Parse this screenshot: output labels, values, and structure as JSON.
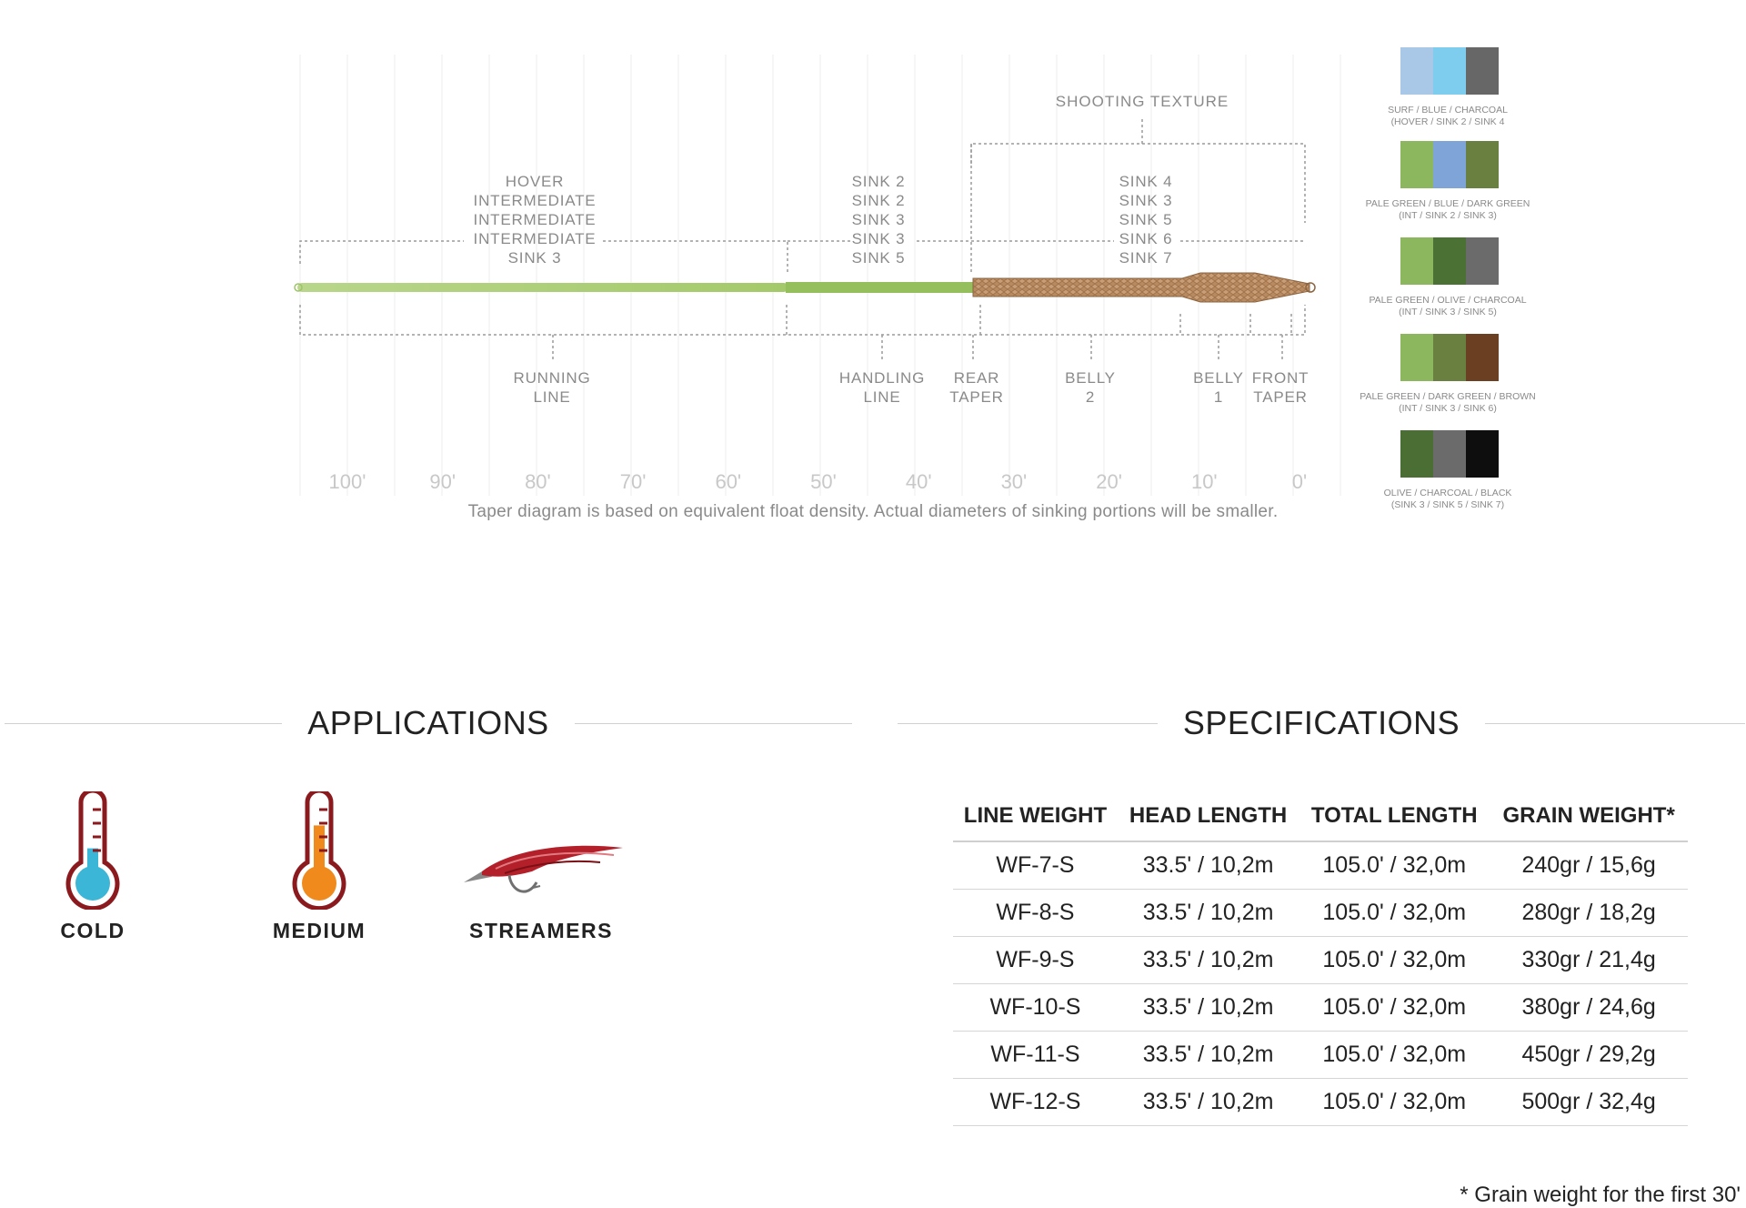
{
  "diagram": {
    "shooting_texture_label": "SHOOTING TEXTURE",
    "density_groups": [
      {
        "lines": [
          "HOVER",
          "INTERMEDIATE",
          "INTERMEDIATE",
          "INTERMEDIATE",
          "SINK 3"
        ]
      },
      {
        "lines": [
          "SINK 2",
          "SINK 2",
          "SINK 3",
          "SINK 3",
          "SINK 5"
        ]
      },
      {
        "lines": [
          "SINK 4",
          "SINK 3",
          "SINK 5",
          "SINK 6",
          "SINK 7"
        ]
      }
    ],
    "sections": [
      {
        "lines": [
          "RUNNING",
          "LINE"
        ]
      },
      {
        "lines": [
          "HANDLING",
          "LINE"
        ]
      },
      {
        "lines": [
          "REAR",
          "TAPER"
        ]
      },
      {
        "lines": [
          "BELLY",
          "2"
        ]
      },
      {
        "lines": [
          "BELLY",
          "1"
        ]
      },
      {
        "lines": [
          "FRONT",
          "TAPER"
        ]
      }
    ],
    "scale_ticks": [
      "100'",
      "90'",
      "80'",
      "70'",
      "60'",
      "50'",
      "40'",
      "30'",
      "20'",
      "10'",
      "0'"
    ],
    "note": "Taper diagram is based on equivalent float density.  Actual diameters of sinking portions will be smaller."
  },
  "colorways": [
    {
      "colors": [
        "#a9c8e8",
        "#7fcdee",
        "#676767"
      ],
      "name": "SURF / BLUE / CHARCOAL",
      "density": "(HOVER / SINK 2 / SINK 4"
    },
    {
      "colors": [
        "#8db75e",
        "#7ea4d8",
        "#6a8040"
      ],
      "name": "PALE GREEN / BLUE / DARK GREEN",
      "density": "(INT / SINK 2 / SINK 3)"
    },
    {
      "colors": [
        "#8db75e",
        "#4b7134",
        "#6b6b6b"
      ],
      "name": "PALE GREEN / OLIVE / CHARCOAL",
      "density": "(INT / SINK 3 / SINK 5)"
    },
    {
      "colors": [
        "#8db75e",
        "#6a8040",
        "#6b3f22"
      ],
      "name": "PALE GREEN / DARK GREEN / BROWN",
      "density": "(INT / SINK 3 / SINK 6)"
    },
    {
      "colors": [
        "#4b6e35",
        "#6b6b6b",
        "#0e0e0e"
      ],
      "name": "OLIVE / CHARCOAL / BLACK",
      "density": "(SINK 3 / SINK 5 / SINK 7)"
    }
  ],
  "applications": {
    "heading": "APPLICATIONS",
    "items": [
      {
        "label": "COLD",
        "icon": "thermometer-cold-icon",
        "level": 0.35
      },
      {
        "label": "MEDIUM",
        "icon": "thermometer-medium-icon",
        "level": 0.65
      },
      {
        "label": "STREAMERS",
        "icon": "streamer-fly-icon"
      }
    ],
    "colors": {
      "frame": "#8b1a1f",
      "cold": "#3bb6d6",
      "medium": "#f08a1c",
      "streamer": "#b3202a"
    }
  },
  "specifications": {
    "heading": "SPECIFICATIONS",
    "columns": [
      "LINE WEIGHT",
      "HEAD LENGTH",
      "TOTAL LENGTH",
      "GRAIN WEIGHT*"
    ],
    "rows": [
      [
        "WF-7-S",
        "33.5' / 10,2m",
        "105.0' / 32,0m",
        "240gr / 15,6g"
      ],
      [
        "WF-8-S",
        "33.5' / 10,2m",
        "105.0' / 32,0m",
        "280gr / 18,2g"
      ],
      [
        "WF-9-S",
        "33.5' / 10,2m",
        "105.0' / 32,0m",
        "330gr / 21,4g"
      ],
      [
        "WF-10-S",
        "33.5' / 10,2m",
        "105.0' / 32,0m",
        "380gr / 24,6g"
      ],
      [
        "WF-11-S",
        "33.5' / 10,2m",
        "105.0' / 32,0m",
        "450gr / 29,2g"
      ],
      [
        "WF-12-S",
        "33.5' / 10,2m",
        "105.0' / 32,0m",
        "500gr / 32,4g"
      ]
    ],
    "footnote": "* Grain weight for the first 30'"
  }
}
